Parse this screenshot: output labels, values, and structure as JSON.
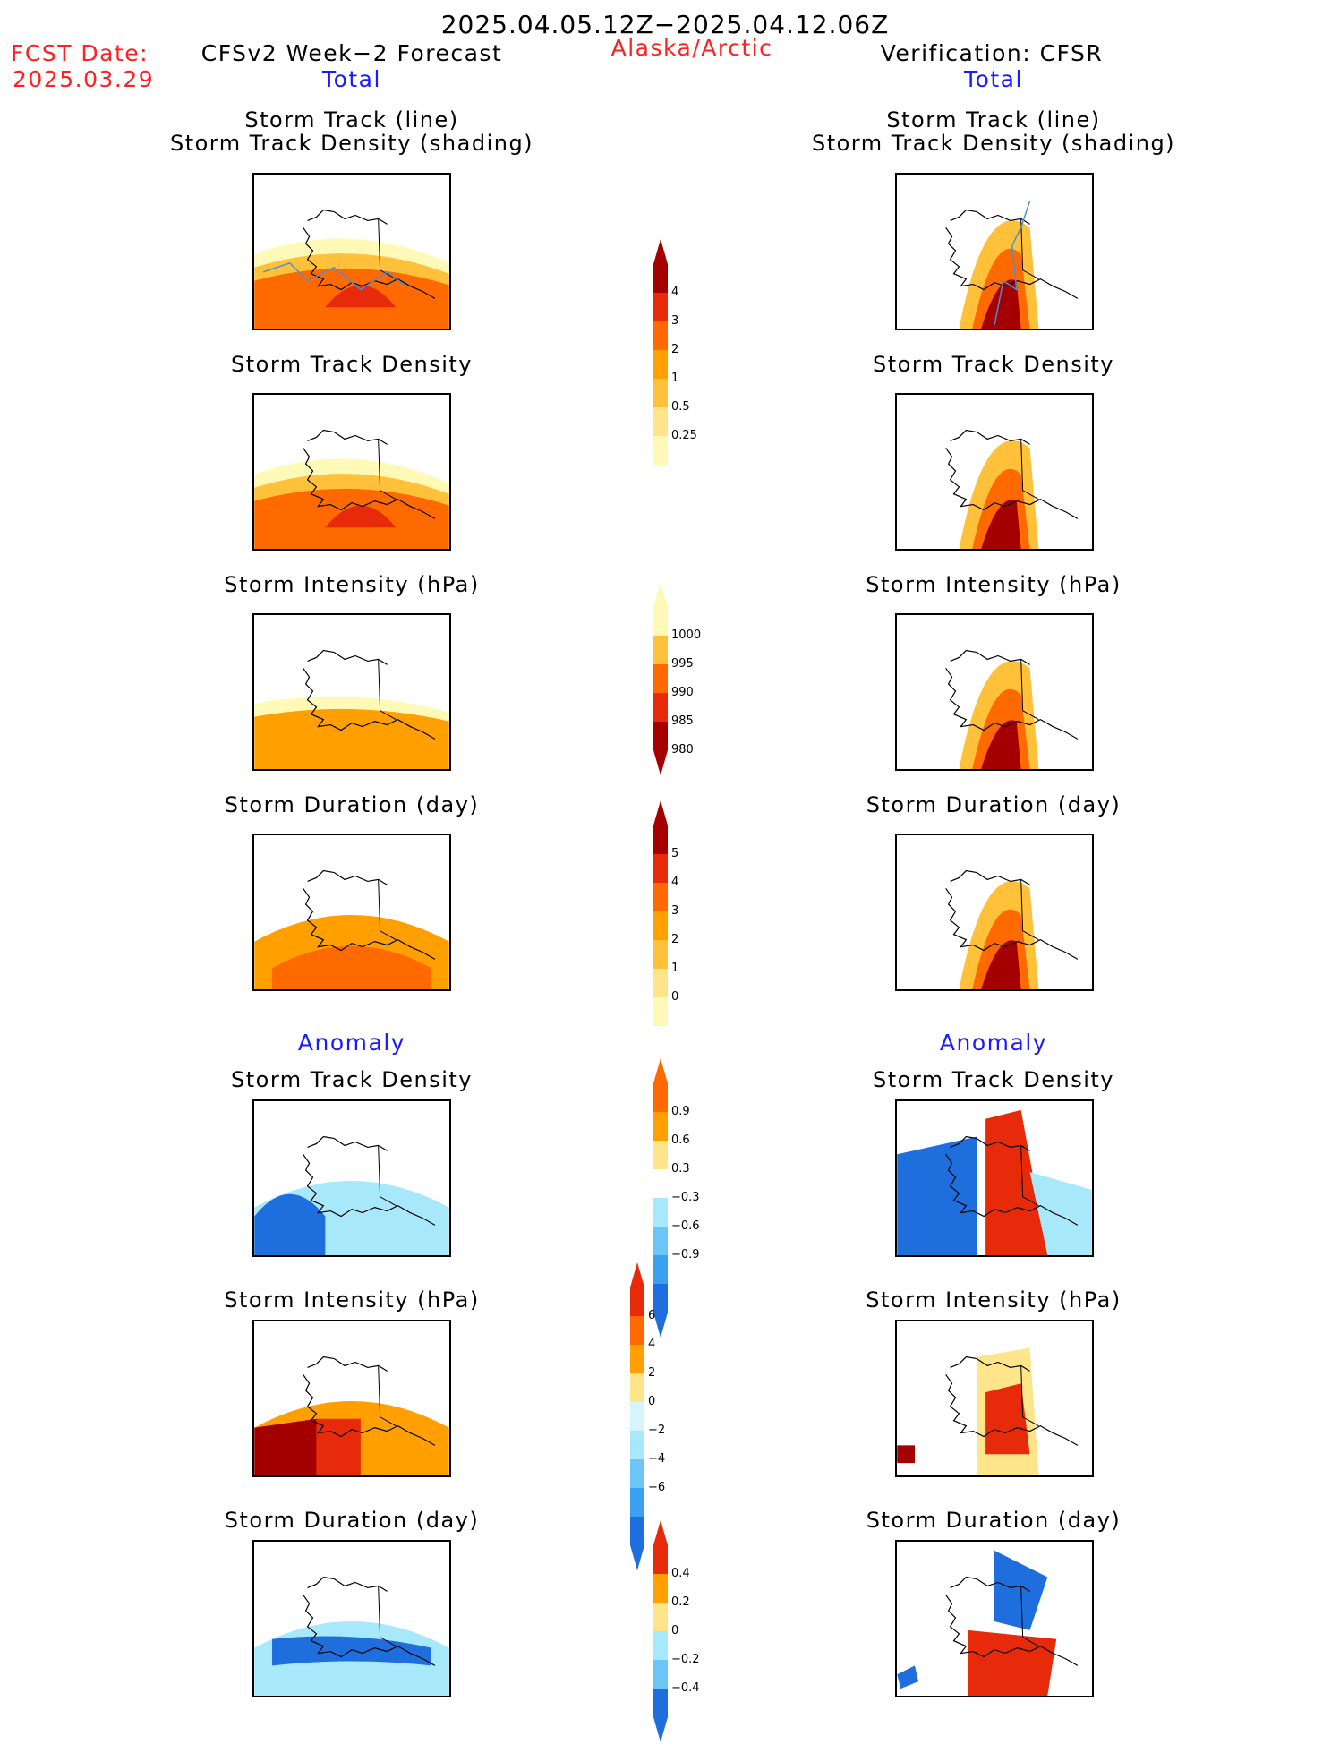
{
  "header": {
    "date_range": "2025.04.05.12Z−2025.04.12.06Z",
    "fcst_label": "FCST Date:",
    "fcst_date": "2025.03.29",
    "left_title": "CFSv2 Week−2 Forecast",
    "region": "Alaska/Arctic",
    "right_title": "Verification: CFSR",
    "left_sub": "Total",
    "right_sub": "Total"
  },
  "anomaly_labels": {
    "left": "Anomaly",
    "right": "Anomaly"
  },
  "panels": {
    "track_line_1": "Storm Track (line)",
    "track_line_2": "Storm Track Density (shading)",
    "density": "Storm Track Density",
    "intensity": "Storm Intensity (hPa)",
    "duration": "Storm Duration (day)"
  },
  "colorbars": {
    "density_total": [
      "4",
      "3",
      "2",
      "1",
      "0.5",
      "0.25"
    ],
    "intensity_total": [
      "1000",
      "995",
      "990",
      "985",
      "980"
    ],
    "duration_total": [
      "5",
      "4",
      "3",
      "2",
      "1",
      "0"
    ],
    "density_anom": [
      "0.9",
      "0.6",
      "0.3",
      "−0.3",
      "−0.6",
      "−0.9"
    ],
    "intensity_anom": [
      "6",
      "4",
      "2",
      "0",
      "−2",
      "−4",
      "−6"
    ],
    "duration_anom": [
      "0.4",
      "0.2",
      "0",
      "−0.2",
      "−0.4"
    ]
  },
  "colors": {
    "warm": [
      "#fff9b8",
      "#ffe58a",
      "#ffc03a",
      "#ff9f00",
      "#ff6a00",
      "#e62a0a",
      "#a50000"
    ],
    "cool": [
      "#d6f5ff",
      "#a8e8fb",
      "#6cc6f5",
      "#3aa0ef",
      "#1e6ede"
    ]
  }
}
